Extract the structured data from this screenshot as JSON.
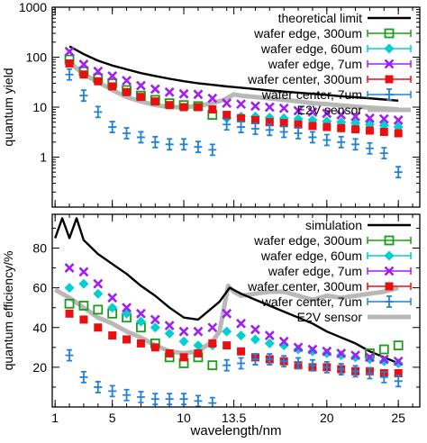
{
  "chart_data": [
    {
      "type": "scatter",
      "title": "",
      "xlabel": "",
      "ylabel": "quantum yield",
      "yscale": "log",
      "ylim": [
        0.1,
        1000
      ],
      "xlim": [
        0.8,
        26.5
      ],
      "yticks": [
        {
          "v": 1,
          "label": "1"
        },
        {
          "v": 10,
          "label": "10"
        },
        {
          "v": 100,
          "label": "100"
        },
        {
          "v": 1000,
          "label": "1000"
        }
      ],
      "legend_position": "top-right",
      "series": [
        {
          "name": "theoretical limit",
          "style": "line",
          "color": "#000000",
          "x": [
            2,
            3,
            4,
            5,
            6,
            7,
            8,
            9,
            10,
            11,
            12,
            13,
            14,
            15,
            16,
            17,
            18,
            19,
            20,
            21,
            22,
            23,
            24,
            25
          ],
          "y": [
            165,
            115,
            85,
            68,
            57,
            48,
            42,
            37,
            33,
            30,
            28,
            26,
            24.5,
            23,
            21.5,
            20.5,
            19.5,
            18.5,
            17.5,
            16.5,
            15.8,
            15,
            14.2,
            13.5
          ]
        },
        {
          "name": "wafer edge, 300um",
          "style": "markers",
          "marker": "open-square",
          "color": "#1a9e1a",
          "x": [
            2,
            3,
            4,
            5,
            6,
            7,
            8,
            9,
            10,
            11,
            12
          ],
          "y": [
            90,
            52,
            38,
            30,
            22,
            17,
            14,
            12,
            11,
            10.5,
            7
          ]
        },
        {
          "name": "wafer edge, 60um",
          "style": "markers",
          "marker": "diamond",
          "color": "#00d0d0",
          "x": [
            13,
            14,
            15,
            16,
            17,
            18,
            19,
            20,
            21,
            22,
            23,
            24,
            25
          ],
          "y": [
            6,
            6.5,
            6.5,
            6.2,
            6,
            5.8,
            5.5,
            5.2,
            5,
            4.8,
            4.5,
            4.3,
            4
          ]
        },
        {
          "name": "wafer edge, 7um",
          "style": "markers",
          "marker": "x",
          "color": "#a020f0",
          "x": [
            2,
            3,
            4,
            5,
            6,
            7,
            8,
            9,
            10,
            11,
            12,
            13,
            14,
            15,
            16,
            17,
            18,
            19,
            20,
            21,
            22,
            23,
            24,
            25
          ],
          "y": [
            130,
            72,
            52,
            42,
            34,
            27,
            23,
            20,
            18.5,
            18,
            15,
            12,
            11.5,
            10.5,
            10,
            9.5,
            8.5,
            8,
            7.5,
            7,
            6.5,
            6,
            5.8,
            5.5
          ]
        },
        {
          "name": "wafer center, 300um",
          "style": "markers",
          "marker": "filled-square",
          "color": "#e81010",
          "x": [
            2,
            3,
            4,
            5,
            6,
            7,
            8,
            9,
            10,
            11,
            12,
            13,
            14,
            15,
            16,
            17,
            18,
            19,
            20,
            21,
            22,
            23,
            24,
            25
          ],
          "y": [
            75,
            45,
            33,
            26,
            20,
            16,
            13,
            11,
            10,
            10,
            9,
            7,
            6,
            5.5,
            5,
            4.8,
            4.5,
            4.2,
            4,
            3.8,
            3.6,
            3.4,
            3.2,
            3
          ]
        },
        {
          "name": "wafer center, 7um",
          "style": "markers",
          "marker": "plus-errorbar",
          "color": "#2080e0",
          "x": [
            2,
            3,
            4,
            5,
            6,
            7,
            8,
            9,
            10,
            11,
            12,
            13,
            14,
            15,
            16,
            17,
            18,
            19,
            20,
            21,
            22,
            23,
            24,
            25
          ],
          "y": [
            45,
            17,
            8,
            4,
            3,
            2.5,
            2,
            1.8,
            1.8,
            1.6,
            1.4,
            4.5,
            4,
            3.7,
            3.5,
            3.2,
            3,
            2.5,
            2.2,
            2,
            1.8,
            1.5,
            1.2,
            0.5
          ]
        },
        {
          "name": "E2V sensor",
          "style": "thick-line",
          "color": "#b8b8b8",
          "x": [
            2,
            3,
            4,
            5,
            6,
            7,
            8,
            9,
            10,
            11,
            12,
            12.8,
            13.5,
            14,
            15,
            16,
            17,
            18,
            19,
            20,
            21,
            22,
            23,
            24,
            25
          ],
          "y": [
            80,
            45,
            32,
            22,
            16,
            13,
            11,
            10,
            10,
            10.5,
            12,
            14,
            18,
            17,
            16,
            15,
            14,
            13,
            12,
            11.5,
            10.8,
            10.2,
            9.8,
            9.4,
            9
          ]
        }
      ]
    },
    {
      "type": "scatter",
      "title": "",
      "xlabel": "wavelength/nm",
      "ylabel": "quantum efficiency/%",
      "ylim": [
        0,
        97
      ],
      "xlim": [
        0.8,
        26.5
      ],
      "yticks": [
        {
          "v": 20,
          "label": "20"
        },
        {
          "v": 40,
          "label": "40"
        },
        {
          "v": 60,
          "label": "60"
        },
        {
          "v": 80,
          "label": "80"
        }
      ],
      "xticks": [
        {
          "v": 1,
          "label": "1"
        },
        {
          "v": 5,
          "label": "5"
        },
        {
          "v": 10,
          "label": "10"
        },
        {
          "v": 13.5,
          "label": "13.5"
        },
        {
          "v": 20,
          "label": "20"
        },
        {
          "v": 25,
          "label": "25"
        }
      ],
      "legend_position": "top-right",
      "series": [
        {
          "name": "simulation",
          "style": "line",
          "color": "#000000",
          "x": [
            1,
            1.5,
            2,
            2.5,
            3,
            4,
            5,
            6,
            7,
            8,
            9,
            10,
            11,
            12,
            12.5,
            13.2,
            14,
            15,
            16,
            17,
            18,
            19,
            20,
            21,
            22,
            23,
            24,
            25
          ],
          "y": [
            85,
            95,
            85,
            95,
            84,
            77,
            72,
            67,
            61,
            56,
            50,
            45,
            44,
            50,
            53,
            60,
            57,
            54,
            51,
            48,
            45,
            42,
            38,
            35,
            32,
            28,
            25,
            22
          ]
        },
        {
          "name": "wafer edge, 300um",
          "style": "markers",
          "marker": "open-square",
          "color": "#1a9e1a",
          "x": [
            2,
            3,
            4,
            5,
            6,
            7,
            8,
            9,
            10,
            11,
            12,
            23,
            24,
            25
          ],
          "y": [
            52,
            51,
            49,
            47,
            45,
            40,
            32,
            25,
            22,
            25,
            21,
            27,
            29,
            31
          ]
        },
        {
          "name": "wafer edge, 60um",
          "style": "markers",
          "marker": "diamond",
          "color": "#00d0d0",
          "x": [
            2,
            3,
            4,
            5,
            6,
            7,
            8,
            9,
            10,
            11,
            12,
            13,
            14,
            15,
            16,
            17,
            18,
            19,
            20,
            21,
            22,
            23,
            24,
            25
          ],
          "y": [
            60,
            62,
            57,
            50,
            47,
            43,
            40,
            37,
            33,
            31,
            31,
            38,
            36,
            34,
            32,
            31,
            29,
            28,
            27,
            26,
            25,
            24,
            23,
            22
          ]
        },
        {
          "name": "wafer edge, 7um",
          "style": "markers",
          "marker": "x",
          "color": "#a020f0",
          "x": [
            2,
            3,
            4,
            5,
            6,
            7,
            8,
            9,
            10,
            11,
            12,
            13,
            14,
            15,
            16,
            17,
            18,
            19,
            20,
            21,
            22,
            23,
            24,
            25
          ],
          "y": [
            70,
            68,
            62,
            55,
            50,
            47,
            44,
            41,
            38,
            38,
            40,
            47,
            42,
            39,
            36,
            33,
            30,
            29,
            28,
            27,
            26,
            25,
            24,
            23
          ]
        },
        {
          "name": "wafer center, 300um",
          "style": "markers",
          "marker": "filled-square",
          "color": "#e81010",
          "x": [
            2,
            3,
            4,
            5,
            6,
            7,
            8,
            9,
            10,
            11,
            12,
            13,
            14,
            15,
            16,
            17,
            18,
            19,
            20,
            21,
            22,
            23,
            24,
            25
          ],
          "y": [
            47,
            44,
            40,
            36,
            34,
            32,
            30,
            27,
            25,
            27,
            32,
            31,
            28,
            25,
            24,
            23,
            21,
            20,
            20,
            19,
            18,
            18,
            17,
            17
          ]
        },
        {
          "name": "wafer center, 7um",
          "style": "markers",
          "marker": "plus-errorbar",
          "color": "#2080e0",
          "x": [
            2,
            3,
            4,
            5,
            6,
            7,
            8,
            9,
            10,
            11,
            12,
            13,
            14,
            15,
            16,
            17,
            18,
            19,
            20,
            21,
            22,
            23,
            24,
            25
          ],
          "y": [
            26,
            15,
            10,
            8,
            6,
            5,
            4,
            4,
            4,
            3,
            2,
            21,
            22,
            24,
            24,
            23,
            22,
            21,
            20,
            19,
            18,
            17,
            15,
            13
          ]
        },
        {
          "name": "E2V sensor",
          "style": "thick-line",
          "color": "#b8b8b8",
          "x": [
            1,
            2,
            3,
            4,
            5,
            6,
            7,
            8,
            9,
            10,
            11,
            12,
            12.5,
            13.1,
            13.5,
            14,
            15,
            16,
            17,
            18,
            19,
            20,
            21,
            22,
            23,
            24,
            25
          ],
          "y": [
            59,
            55,
            50,
            45,
            42,
            38,
            35,
            31,
            28,
            27,
            28,
            33,
            38,
            61,
            58,
            56,
            57,
            58,
            58,
            56,
            54,
            56,
            55,
            56,
            57,
            58,
            60
          ]
        }
      ]
    }
  ]
}
